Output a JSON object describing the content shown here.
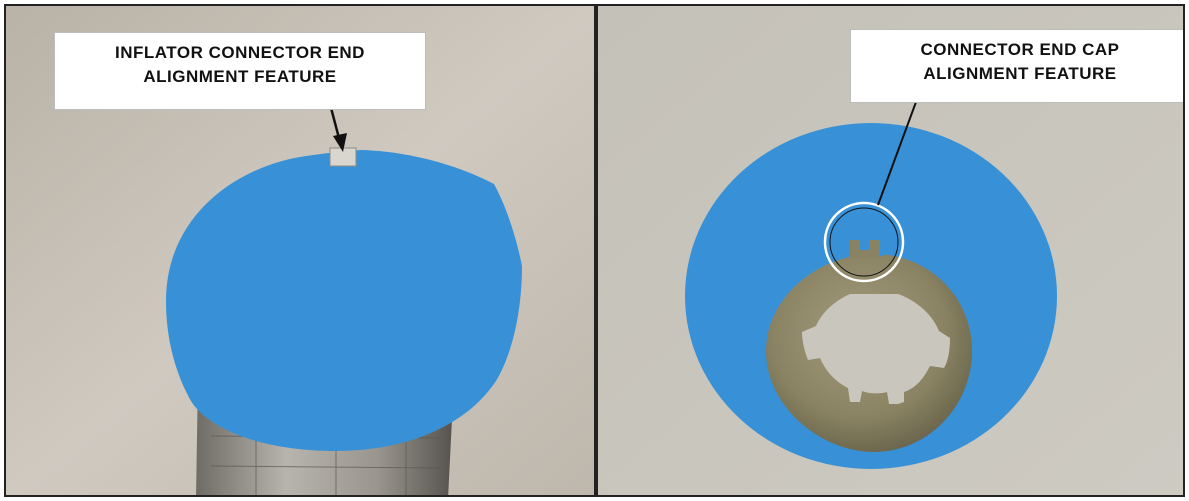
{
  "left_panel": {
    "callout": {
      "line1": "INFLATOR CONNECTOR END",
      "line2": "ALIGNMENT FEATURE"
    }
  },
  "right_panel": {
    "callout": {
      "line1": "CONNECTOR END CAP",
      "line2": "ALIGNMENT FEATURE"
    }
  },
  "colors": {
    "redaction_blue": "#3891d6",
    "wall_left": "#c8c2b8",
    "wall_right": "#c9c6bd",
    "end_cap_ring": "#8a8363"
  }
}
